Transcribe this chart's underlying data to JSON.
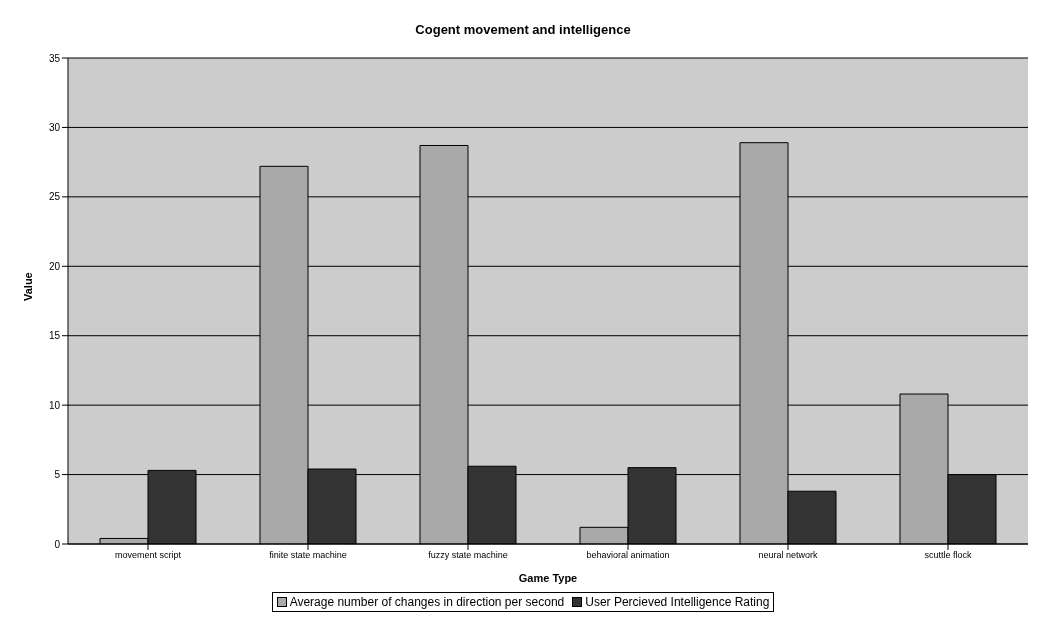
{
  "chart_data": {
    "type": "bar",
    "title": "Cogent movement and intelligence",
    "xlabel": "Game Type",
    "ylabel": "Value",
    "categories": [
      "movement script",
      "finite state machine",
      "fuzzy state machine",
      "behavioral animation",
      "neural network",
      "scuttle flock"
    ],
    "series": [
      {
        "name": "Average number of changes in direction per second",
        "color": "#a9a9a9",
        "values": [
          0.4,
          27.2,
          28.7,
          1.2,
          28.9,
          10.8
        ]
      },
      {
        "name": "User Percieved Intelligence Rating",
        "color": "#333333",
        "values": [
          5.3,
          5.4,
          5.6,
          5.5,
          3.8,
          5.0
        ]
      }
    ],
    "ylim": [
      0,
      35
    ],
    "yticks": [
      0,
      5,
      10,
      15,
      20,
      25,
      30,
      35
    ],
    "grid": "y",
    "legend": "bottom"
  }
}
